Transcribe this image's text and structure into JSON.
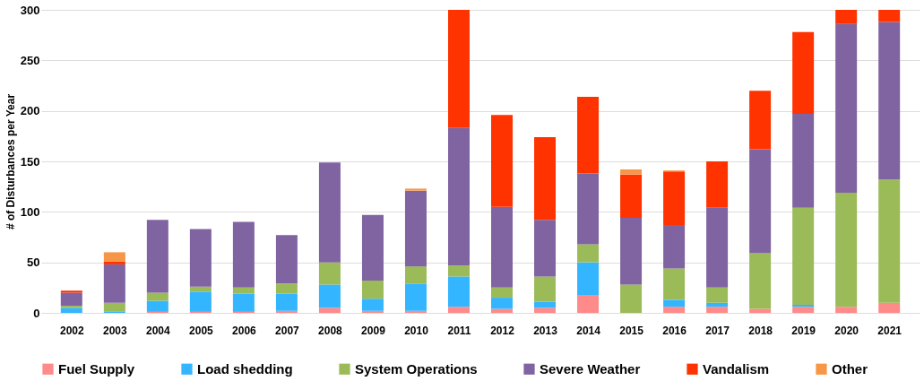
{
  "chart_data": {
    "type": "bar",
    "stacked": true,
    "ylabel": "# of Disturbances per Year",
    "categories": [
      "2002",
      "2003",
      "2004",
      "2005",
      "2006",
      "2007",
      "2008",
      "2009",
      "2010",
      "2011",
      "2012",
      "2013",
      "2014",
      "2015",
      "2016",
      "2017",
      "2018",
      "2019",
      "2020",
      "2021"
    ],
    "series": [
      {
        "name": "Fuel Supply",
        "color": "#ff8a8a",
        "values": [
          0,
          0,
          1,
          1,
          1,
          2,
          5,
          2,
          2,
          6,
          4,
          5,
          17,
          0,
          6,
          6,
          4,
          6,
          6,
          10
        ]
      },
      {
        "name": "Load shedding",
        "color": "#33b5ff",
        "values": [
          5,
          1,
          11,
          20,
          18,
          17,
          23,
          12,
          27,
          30,
          11,
          6,
          33,
          0,
          7,
          4,
          0,
          2,
          0,
          0
        ]
      },
      {
        "name": "System Operations",
        "color": "#9bbb59",
        "values": [
          2,
          9,
          8,
          5,
          6,
          10,
          22,
          18,
          17,
          11,
          10,
          25,
          18,
          28,
          31,
          15,
          55,
          96,
          113,
          122
        ]
      },
      {
        "name": "Severe Weather",
        "color": "#8064a2",
        "values": [
          13,
          38,
          72,
          57,
          65,
          48,
          99,
          65,
          75,
          136,
          80,
          56,
          70,
          66,
          43,
          79,
          103,
          93,
          167,
          156
        ]
      },
      {
        "name": "Vandalism",
        "color": "#ff3300",
        "values": [
          2,
          3,
          0,
          0,
          0,
          0,
          0,
          0,
          0,
          117,
          91,
          82,
          76,
          43,
          53,
          46,
          58,
          81,
          14,
          12
        ]
      },
      {
        "name": "Other",
        "color": "#f79646",
        "values": [
          0,
          9,
          0,
          0,
          0,
          0,
          0,
          0,
          2,
          0,
          0,
          0,
          0,
          5,
          1,
          0,
          0,
          0,
          0,
          0
        ]
      }
    ],
    "ylim": [
      0,
      300
    ],
    "yticks": [
      0,
      50,
      100,
      150,
      200,
      250,
      300
    ],
    "grid": "y",
    "legend": "bottom"
  }
}
